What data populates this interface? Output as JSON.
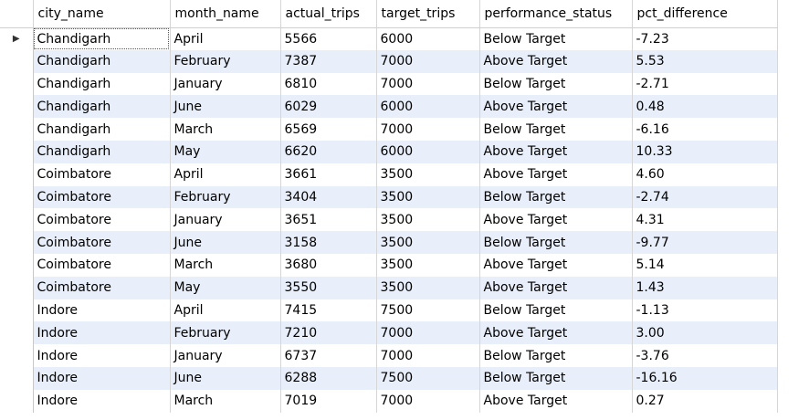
{
  "columns": [
    "city_name",
    "month_name",
    "actual_trips",
    "target_trips",
    "performance_status",
    "pct_difference"
  ],
  "current_row_marker": "▶",
  "rows": [
    {
      "city_name": "Chandigarh",
      "month_name": "April",
      "actual_trips": "5566",
      "target_trips": "6000",
      "performance_status": "Below Target",
      "pct_difference": "-7.23"
    },
    {
      "city_name": "Chandigarh",
      "month_name": "February",
      "actual_trips": "7387",
      "target_trips": "7000",
      "performance_status": "Above Target",
      "pct_difference": "5.53"
    },
    {
      "city_name": "Chandigarh",
      "month_name": "January",
      "actual_trips": "6810",
      "target_trips": "7000",
      "performance_status": "Below Target",
      "pct_difference": "-2.71"
    },
    {
      "city_name": "Chandigarh",
      "month_name": "June",
      "actual_trips": "6029",
      "target_trips": "6000",
      "performance_status": "Above Target",
      "pct_difference": "0.48"
    },
    {
      "city_name": "Chandigarh",
      "month_name": "March",
      "actual_trips": "6569",
      "target_trips": "7000",
      "performance_status": "Below Target",
      "pct_difference": "-6.16"
    },
    {
      "city_name": "Chandigarh",
      "month_name": "May",
      "actual_trips": "6620",
      "target_trips": "6000",
      "performance_status": "Above Target",
      "pct_difference": "10.33"
    },
    {
      "city_name": "Coimbatore",
      "month_name": "April",
      "actual_trips": "3661",
      "target_trips": "3500",
      "performance_status": "Above Target",
      "pct_difference": "4.60"
    },
    {
      "city_name": "Coimbatore",
      "month_name": "February",
      "actual_trips": "3404",
      "target_trips": "3500",
      "performance_status": "Below Target",
      "pct_difference": "-2.74"
    },
    {
      "city_name": "Coimbatore",
      "month_name": "January",
      "actual_trips": "3651",
      "target_trips": "3500",
      "performance_status": "Above Target",
      "pct_difference": "4.31"
    },
    {
      "city_name": "Coimbatore",
      "month_name": "June",
      "actual_trips": "3158",
      "target_trips": "3500",
      "performance_status": "Below Target",
      "pct_difference": "-9.77"
    },
    {
      "city_name": "Coimbatore",
      "month_name": "March",
      "actual_trips": "3680",
      "target_trips": "3500",
      "performance_status": "Above Target",
      "pct_difference": "5.14"
    },
    {
      "city_name": "Coimbatore",
      "month_name": "May",
      "actual_trips": "3550",
      "target_trips": "3500",
      "performance_status": "Above Target",
      "pct_difference": "1.43"
    },
    {
      "city_name": "Indore",
      "month_name": "April",
      "actual_trips": "7415",
      "target_trips": "7500",
      "performance_status": "Below Target",
      "pct_difference": "-1.13"
    },
    {
      "city_name": "Indore",
      "month_name": "February",
      "actual_trips": "7210",
      "target_trips": "7000",
      "performance_status": "Above Target",
      "pct_difference": "3.00"
    },
    {
      "city_name": "Indore",
      "month_name": "January",
      "actual_trips": "6737",
      "target_trips": "7000",
      "performance_status": "Below Target",
      "pct_difference": "-3.76"
    },
    {
      "city_name": "Indore",
      "month_name": "June",
      "actual_trips": "6288",
      "target_trips": "7500",
      "performance_status": "Below Target",
      "pct_difference": "-16.16"
    },
    {
      "city_name": "Indore",
      "month_name": "March",
      "actual_trips": "7019",
      "target_trips": "7000",
      "performance_status": "Above Target",
      "pct_difference": "0.27"
    }
  ]
}
